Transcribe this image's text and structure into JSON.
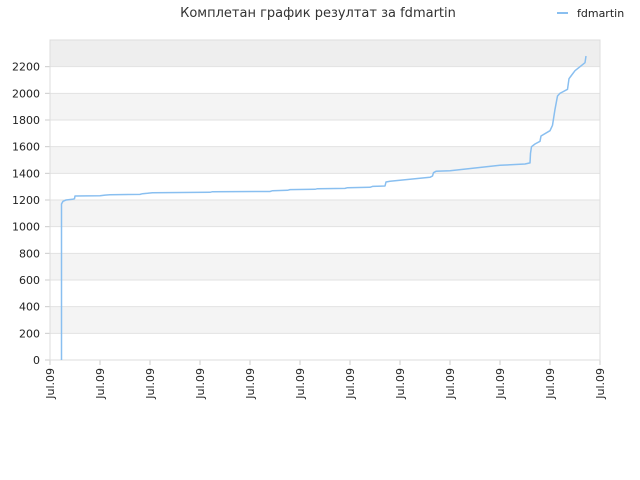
{
  "chart_data": {
    "type": "line",
    "title": "Комплетан график резултат за fdmartin",
    "xlabel": "",
    "ylabel": "",
    "x_tick_labels": [
      "Jul.09",
      "Jul.09",
      "Jul.09",
      "Jul.09",
      "Jul.09",
      "Jul.09",
      "Jul.09",
      "Jul.09",
      "Jul.09",
      "Jul.09",
      "Jul.09",
      "Jul.09"
    ],
    "y_ticks": [
      0,
      200,
      400,
      600,
      800,
      1000,
      1200,
      1400,
      1600,
      1800,
      2000,
      2200
    ],
    "ylim": [
      0,
      2400
    ],
    "xlim": [
      0,
      11
    ],
    "grid": true,
    "legend_position": "top-right",
    "colors": {
      "series": "#89bff0",
      "band_dark": "#eeeeee",
      "band_light": "#f4f4f4",
      "axis": "#cccccc"
    },
    "series": [
      {
        "name": "fdmartin",
        "points": [
          [
            0.23,
            0
          ],
          [
            0.23,
            1170
          ],
          [
            0.26,
            1190
          ],
          [
            0.32,
            1200
          ],
          [
            0.45,
            1205
          ],
          [
            0.49,
            1210
          ],
          [
            0.5,
            1230
          ],
          [
            1.0,
            1232
          ],
          [
            1.1,
            1237
          ],
          [
            1.2,
            1240
          ],
          [
            1.8,
            1242
          ],
          [
            1.85,
            1247
          ],
          [
            1.95,
            1250
          ],
          [
            2.05,
            1255
          ],
          [
            3.2,
            1258
          ],
          [
            3.25,
            1262
          ],
          [
            4.4,
            1264
          ],
          [
            4.45,
            1270
          ],
          [
            4.75,
            1273
          ],
          [
            4.8,
            1278
          ],
          [
            5.3,
            1280
          ],
          [
            5.35,
            1285
          ],
          [
            5.9,
            1287
          ],
          [
            5.95,
            1292
          ],
          [
            6.4,
            1295
          ],
          [
            6.45,
            1302
          ],
          [
            6.7,
            1305
          ],
          [
            6.72,
            1335
          ],
          [
            6.8,
            1340
          ],
          [
            7.3,
            1360
          ],
          [
            7.6,
            1370
          ],
          [
            7.65,
            1380
          ],
          [
            7.67,
            1405
          ],
          [
            7.72,
            1415
          ],
          [
            8.0,
            1420
          ],
          [
            8.5,
            1440
          ],
          [
            9.0,
            1460
          ],
          [
            9.5,
            1470
          ],
          [
            9.6,
            1478
          ],
          [
            9.61,
            1550
          ],
          [
            9.63,
            1600
          ],
          [
            9.7,
            1620
          ],
          [
            9.8,
            1640
          ],
          [
            9.82,
            1680
          ],
          [
            10.0,
            1720
          ],
          [
            10.05,
            1760
          ],
          [
            10.1,
            1880
          ],
          [
            10.15,
            1980
          ],
          [
            10.2,
            2000
          ],
          [
            10.25,
            2010
          ],
          [
            10.35,
            2030
          ],
          [
            10.38,
            2110
          ],
          [
            10.42,
            2130
          ],
          [
            10.5,
            2170
          ],
          [
            10.6,
            2200
          ],
          [
            10.7,
            2230
          ],
          [
            10.72,
            2280
          ]
        ]
      }
    ]
  }
}
